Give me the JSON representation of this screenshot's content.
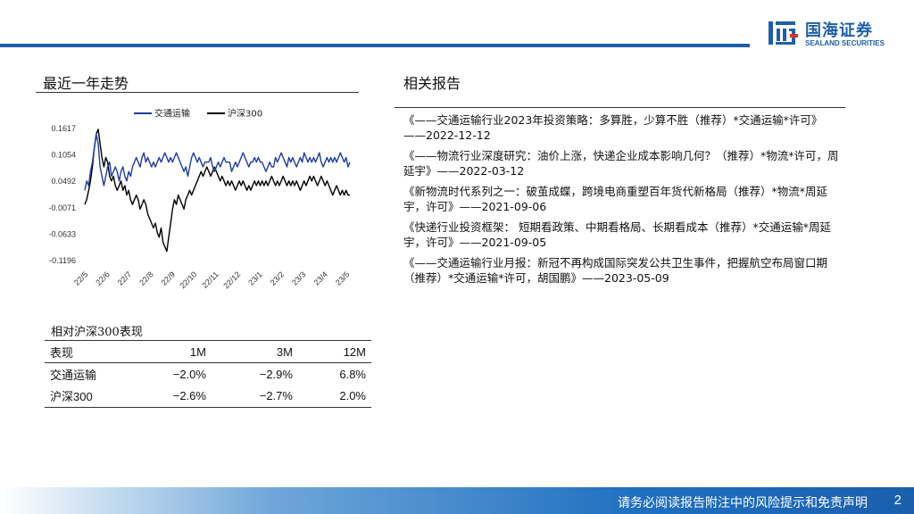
{
  "brand": {
    "name_cn": "国海证券",
    "name_en": "SEALAND SECURITIES",
    "color": "#1f5fa8"
  },
  "left": {
    "title": "最近一年走势"
  },
  "right": {
    "title": "相关报告",
    "reports": [
      "《——交通运输行业2023年投资策略：多算胜，少算不胜（推荐）*交通运输*许可》——2022-12-12",
      "《——物流行业深度研究：油价上涨，快递企业成本影响几何？（推荐）*物流*许可，周延宇》——2022-03-12",
      "《新物流时代系列之一：破茧成蝶，跨境电商重塑百年货代新格局（推荐）*物流*周延宇，许可》——2021-09-06",
      "《快递行业投资框架：   短期看政策、中期看格局、长期看成本（推荐）*交通运输*周延宇，许可》——2021-09-05",
      "《——交通运输行业月报：新冠不再构成国际突发公共卫生事件，把握航空布局窗口期（推荐）*交通运输*许可，胡国鹏》——2023-05-09"
    ]
  },
  "performance": {
    "title": "相对沪深300表现",
    "headers": [
      "表现",
      "1M",
      "3M",
      "12M"
    ],
    "rows": [
      [
        "交通运输",
        "−2.0%",
        "−2.9%",
        "6.8%"
      ],
      [
        "沪深300",
        "−2.6%",
        "−2.7%",
        "2.0%"
      ]
    ]
  },
  "footer": {
    "disclaimer": "请务必阅读报告附注中的风险提示和免责声明",
    "page": "2"
  },
  "chart_data": {
    "type": "line",
    "x_ticks": [
      "22/5",
      "22/6",
      "22/7",
      "22/8",
      "22/9",
      "22/10",
      "22/11",
      "22/12",
      "23/1",
      "23/2",
      "23/3",
      "23/4",
      "23/5"
    ],
    "y_ticks": [
      "0.1617",
      "0.1054",
      "0.0492",
      "-0.0071",
      "-0.0633",
      "-0.1196"
    ],
    "ylim": [
      -0.1196,
      0.1617
    ],
    "legend_position": "top",
    "series": [
      {
        "name": "交通运输",
        "color": "#1f3c9e",
        "values": [
          0.03,
          0.05,
          0.04,
          0.07,
          0.09,
          0.12,
          0.15,
          0.13,
          0.08,
          0.06,
          0.04,
          0.06,
          0.08,
          0.09,
          0.06,
          0.07,
          0.08,
          0.07,
          0.05,
          0.07,
          0.08,
          0.06,
          0.05,
          0.07,
          0.06,
          0.08,
          0.09,
          0.1,
          0.09,
          0.08,
          0.1,
          0.11,
          0.09,
          0.1,
          0.09,
          0.08,
          0.09,
          0.08,
          0.09,
          0.1,
          0.09,
          0.1,
          0.11,
          0.1,
          0.09,
          0.1,
          0.09,
          0.1,
          0.11,
          0.1,
          0.09,
          0.08,
          0.07,
          0.08,
          0.06,
          0.08,
          0.1,
          0.11,
          0.1,
          0.09,
          0.1,
          0.09,
          0.08,
          0.09,
          0.09,
          0.09,
          0.1,
          0.08,
          0.07,
          0.08,
          0.09,
          0.08,
          0.09,
          0.1,
          0.09,
          0.09,
          0.09,
          0.07,
          0.08,
          0.09,
          0.08,
          0.09,
          0.1,
          0.11,
          0.1,
          0.09,
          0.08,
          0.09,
          0.09,
          0.1,
          0.09,
          0.1,
          0.09,
          0.09,
          0.08,
          0.07,
          0.08,
          0.09,
          0.08,
          0.08,
          0.1,
          0.09,
          0.1,
          0.11,
          0.1,
          0.09,
          0.08,
          0.1,
          0.09,
          0.1,
          0.09,
          0.08,
          0.09,
          0.1,
          0.09,
          0.11,
          0.1,
          0.09,
          0.1,
          0.09,
          0.1,
          0.09,
          0.1,
          0.11,
          0.09,
          0.08,
          0.09,
          0.1,
          0.09,
          0.1,
          0.09,
          0.1,
          0.09,
          0.1,
          0.11,
          0.1,
          0.09,
          0.1,
          0.08,
          0.09
        ]
      },
      {
        "name": "沪深300",
        "color": "#000000",
        "values": [
          0.0,
          0.01,
          0.03,
          0.05,
          0.08,
          0.12,
          0.15,
          0.16,
          0.13,
          0.1,
          0.08,
          0.1,
          0.09,
          0.06,
          0.05,
          0.06,
          0.04,
          0.03,
          0.04,
          0.05,
          0.03,
          0.04,
          0.02,
          0.03,
          0.01,
          0.0,
          0.01,
          0.02,
          0.01,
          -0.01,
          0.0,
          0.01,
          0.0,
          -0.02,
          -0.03,
          -0.04,
          -0.05,
          -0.04,
          -0.06,
          -0.07,
          -0.05,
          -0.08,
          -0.09,
          -0.1,
          -0.07,
          -0.04,
          -0.01,
          0.01,
          0.0,
          0.02,
          0.01,
          0.0,
          -0.01,
          0.01,
          0.02,
          0.03,
          0.02,
          0.03,
          0.04,
          0.05,
          0.06,
          0.07,
          0.06,
          0.07,
          0.08,
          0.07,
          0.06,
          0.07,
          0.08,
          0.07,
          0.06,
          0.05,
          0.06,
          0.05,
          0.04,
          0.05,
          0.04,
          0.05,
          0.04,
          0.03,
          0.04,
          0.05,
          0.04,
          0.05,
          0.04,
          0.03,
          0.04,
          0.03,
          0.04,
          0.05,
          0.04,
          0.05,
          0.04,
          0.05,
          0.04,
          0.05,
          0.04,
          0.05,
          0.06,
          0.05,
          0.04,
          0.05,
          0.04,
          0.05,
          0.06,
          0.05,
          0.04,
          0.05,
          0.04,
          0.05,
          0.04,
          0.05,
          0.04,
          0.03,
          0.04,
          0.05,
          0.04,
          0.05,
          0.06,
          0.05,
          0.06,
          0.05,
          0.04,
          0.05,
          0.06,
          0.05,
          0.04,
          0.05,
          0.04,
          0.03,
          0.02,
          0.03,
          0.04,
          0.03,
          0.02,
          0.03,
          0.02,
          0.03,
          0.02,
          0.02
        ]
      }
    ]
  }
}
